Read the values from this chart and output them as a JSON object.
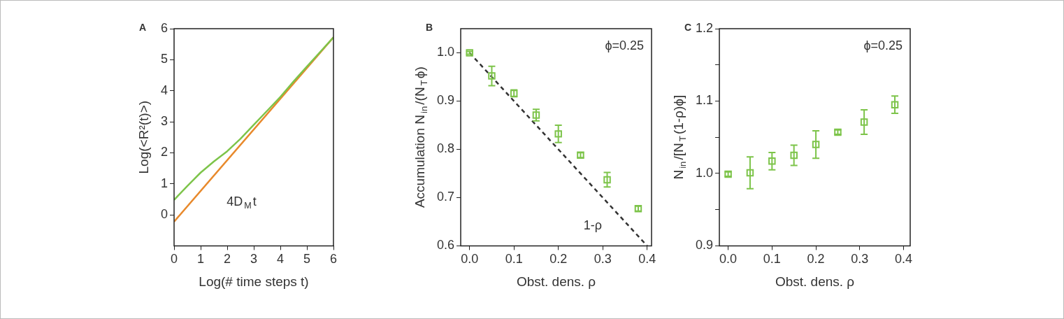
{
  "chart_data": [
    {
      "type": "line",
      "title": "A",
      "xlabel": "Log(# time steps t)",
      "ylabel": "Log(<R²(t)>)",
      "xlim": [
        0,
        6
      ],
      "xticks": [
        0,
        1,
        2,
        3,
        4,
        5,
        6
      ],
      "ylim": [
        -1,
        6
      ],
      "yticks": [
        0,
        1,
        2,
        3,
        4,
        5,
        6
      ],
      "series": [
        {
          "color": "#7dc44a",
          "x": [
            0,
            0.5,
            1,
            1.5,
            2,
            2.5,
            3,
            3.5,
            4,
            4.5,
            5,
            5.5,
            6
          ],
          "values": [
            0.48,
            0.93,
            1.36,
            1.72,
            2.05,
            2.45,
            2.9,
            3.35,
            3.8,
            4.3,
            4.78,
            5.25,
            5.72
          ]
        },
        {
          "color": "#e8892b",
          "x": [
            0,
            6
          ],
          "values": [
            -0.22,
            5.72
          ]
        }
      ],
      "annotations": [
        "4D$_{M}$t"
      ]
    },
    {
      "type": "scatter",
      "title": "B",
      "xlabel": "Obst. dens. ρ",
      "ylabel": "Accumulation N$_{in}$/(N$_{T}$ϕ)",
      "xlim": [
        -0.02,
        0.41
      ],
      "xticks": [
        {
          "value": 0,
          "label": "0.0"
        },
        0.1,
        0.2,
        0.3,
        0.4
      ],
      "ylim": [
        0.6,
        1.05
      ],
      "yticks": [
        0.6,
        0.7,
        0.8,
        0.9,
        {
          "value": 1,
          "label": "1.0"
        }
      ],
      "series": [
        {
          "marker": "square",
          "color": "#7dc44a",
          "x": [
            0,
            0.05,
            0.1,
            0.15,
            0.2,
            0.25,
            0.31,
            0.38
          ],
          "values": [
            1.0,
            0.952,
            0.916,
            0.871,
            0.832,
            0.788,
            0.737,
            0.677
          ],
          "errors": [
            0.003,
            0.02,
            0.007,
            0.012,
            0.018,
            0.005,
            0.015,
            0.005
          ]
        },
        {
          "type": "line",
          "line_style": "dashed",
          "color": "#333333",
          "x": [
            0,
            0.4
          ],
          "values": [
            1.0,
            0.6
          ]
        }
      ],
      "annotations": [
        "ϕ=0.25",
        "1-ρ"
      ]
    },
    {
      "type": "scatter",
      "title": "C",
      "xlabel": "Obst. dens. ρ",
      "ylabel": "N$_{in}$/[N$_{T}$(1-ρ)ϕ]",
      "xlim": [
        -0.02,
        0.415
      ],
      "xticks": [
        {
          "value": 0,
          "label": "0.0"
        },
        0.1,
        0.2,
        0.3,
        0.4
      ],
      "ylim": [
        0.9,
        1.2
      ],
      "yticks": [
        0.9,
        {
          "value": 0.95,
          "label": null
        },
        {
          "value": 1,
          "label": "1.0"
        },
        {
          "value": 1.05,
          "label": null
        },
        1.1,
        {
          "value": 1.15,
          "label": null
        },
        1.2
      ],
      "series": [
        {
          "marker": "square",
          "color": "#7dc44a",
          "x": [
            0,
            0.05,
            0.1,
            0.15,
            0.2,
            0.25,
            0.31,
            0.38
          ],
          "values": [
            0.999,
            1.001,
            1.017,
            1.025,
            1.04,
            1.057,
            1.071,
            1.095
          ],
          "errors": [
            0.003,
            0.022,
            0.012,
            0.014,
            0.019,
            0.003,
            0.017,
            0.012
          ]
        }
      ],
      "annotations": [
        "ϕ=0.25"
      ]
    }
  ]
}
